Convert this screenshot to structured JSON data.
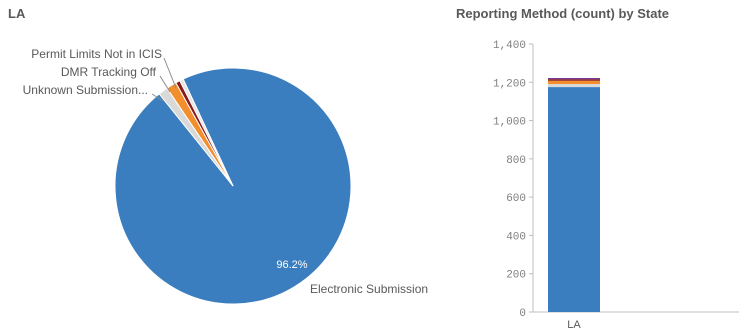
{
  "chart_data": [
    {
      "type": "pie",
      "title": "LA",
      "slices": [
        {
          "label": "Electronic Submission",
          "value": 96.2,
          "color": "#3a7ebf",
          "data_label": "96.2%"
        },
        {
          "label": "Unknown Submission...",
          "value": 1.3,
          "color": "#d9d9d9",
          "data_label": ""
        },
        {
          "label": "DMR Tracking Off",
          "value": 1.4,
          "color": "#f28e2b",
          "data_label": ""
        },
        {
          "label": "Permit Limits Not in ICIS",
          "value": 0.6,
          "color": "#8b1a1a",
          "data_label": ""
        },
        {
          "label": "",
          "value": 0.5,
          "color": "#e6e6e6",
          "data_label": ""
        }
      ]
    },
    {
      "type": "bar",
      "stacked": true,
      "title": "Reporting Method (count) by State",
      "categories": [
        "LA"
      ],
      "series": [
        {
          "name": "Electronic Submission",
          "values": [
            1175
          ],
          "color": "#3a7ebf"
        },
        {
          "name": "Unknown Submission...",
          "values": [
            16
          ],
          "color": "#d9d9d9"
        },
        {
          "name": "DMR Tracking Off",
          "values": [
            17
          ],
          "color": "#f28e2b"
        },
        {
          "name": "Permit Limits Not in ICIS",
          "values": [
            8
          ],
          "color": "#8b1a1a"
        },
        {
          "name": "",
          "values": [
            6
          ],
          "color": "#6b2d8f"
        }
      ],
      "ylim": [
        0,
        1400
      ],
      "yticks": [
        0,
        200,
        400,
        600,
        800,
        1000,
        1200,
        1400
      ],
      "ytick_labels": [
        "0",
        "200",
        "400",
        "600",
        "800",
        "1,000",
        "1,200",
        "1,400"
      ],
      "grid": false,
      "legend": "none"
    }
  ]
}
